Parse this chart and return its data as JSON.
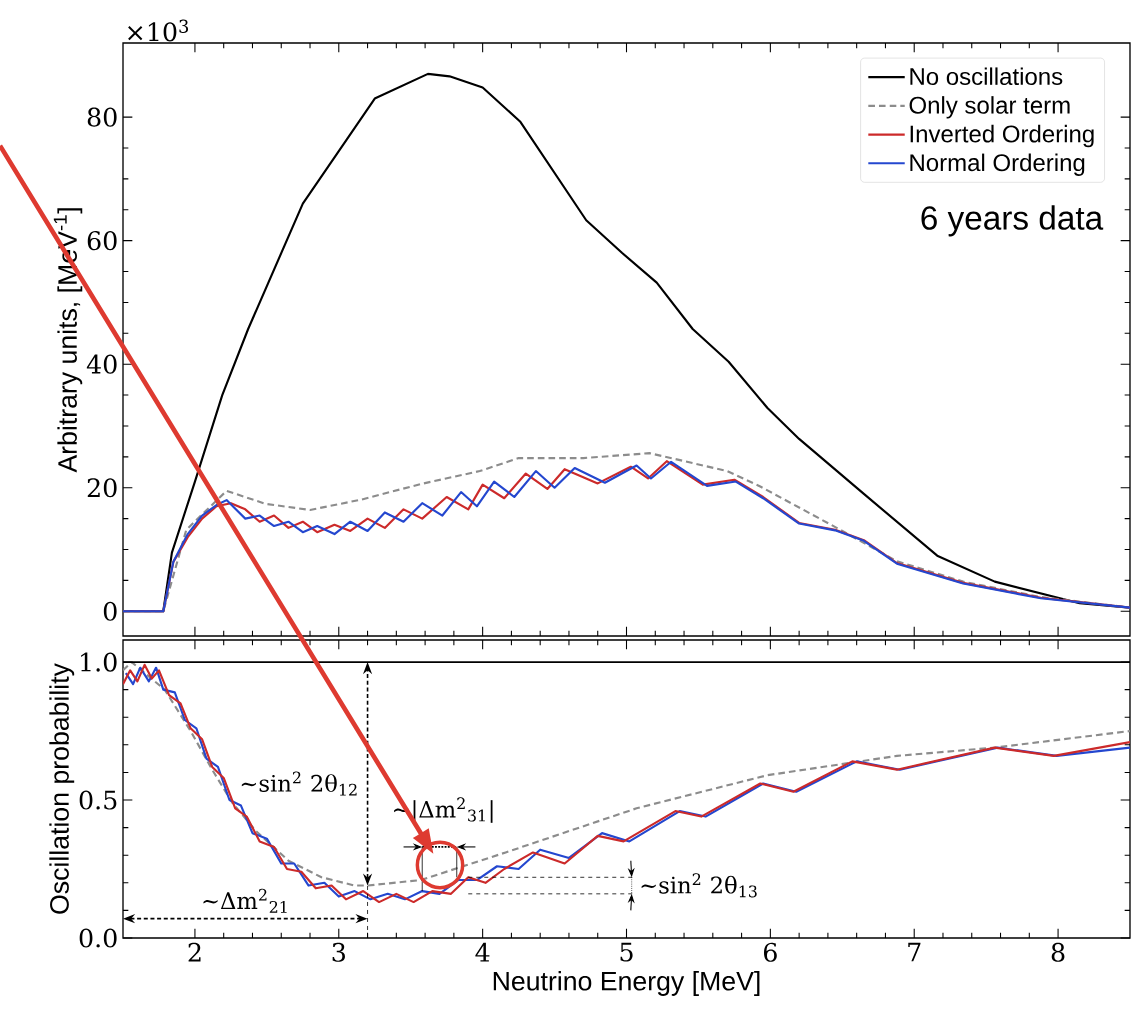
{
  "chart_data": [
    {
      "type": "line",
      "ylabel": "Arbitrary units, [MeV$^{-1}$]",
      "xlim": [
        1.5,
        8.5
      ],
      "xticks": [
        2,
        3,
        4,
        5,
        6,
        7,
        8
      ],
      "ylim": [
        -4,
        92
      ],
      "yticks": [
        0,
        20,
        40,
        60,
        80
      ],
      "tick_labels": "y",
      "legend": "top right",
      "annotations": [
        "×10$^{3}$",
        "6 years data"
      ],
      "series": [
        {
          "name": "No oscillations",
          "color": "#000000",
          "line_style": "solid",
          "x": [
            1.5,
            1.78,
            1.84,
            2.0,
            2.19,
            2.37,
            2.75,
            3.25,
            3.62,
            3.77,
            4.0,
            4.26,
            4.72,
            4.97,
            5.21,
            5.46,
            5.71,
            5.98,
            6.2,
            6.65,
            7.16,
            7.56,
            8.15,
            8.5
          ],
          "values": [
            0,
            0,
            9.5,
            21,
            35,
            45.7,
            66,
            83,
            87,
            86.6,
            84.8,
            79.3,
            63.3,
            58,
            53.2,
            45.7,
            40.4,
            32.9,
            27.9,
            19,
            9,
            4.8,
            1.3,
            0.6
          ]
        },
        {
          "name": "Only solar term",
          "color": "#8c8c8c",
          "line_style": "dashed",
          "x": [
            1.5,
            1.78,
            1.94,
            2.22,
            2.49,
            2.8,
            3.16,
            3.57,
            3.98,
            4.25,
            4.7,
            5.16,
            5.7,
            5.93,
            6.43,
            6.88,
            7.34,
            7.88,
            8.5
          ],
          "values": [
            0,
            0,
            13.2,
            19.5,
            17.4,
            16.4,
            18.1,
            20.6,
            22.7,
            24.8,
            24.8,
            25.6,
            22.7,
            20.2,
            13.9,
            8.1,
            4.8,
            2.3,
            0.6
          ]
        },
        {
          "name": "Inverted Ordering",
          "color": "#cc2a2a",
          "line_style": "solid",
          "x": [
            1.5,
            1.78,
            1.85,
            1.95,
            2.05,
            2.15,
            2.25,
            2.35,
            2.45,
            2.55,
            2.65,
            2.75,
            2.85,
            2.97,
            3.08,
            3.2,
            3.32,
            3.45,
            3.58,
            3.75,
            3.9,
            4.0,
            4.15,
            4.3,
            4.45,
            4.57,
            4.8,
            5.03,
            5.15,
            5.28,
            5.53,
            5.75,
            5.95,
            6.2,
            6.45,
            6.65,
            6.88,
            7.34,
            7.88,
            8.5
          ],
          "values": [
            0,
            0,
            8,
            12,
            15,
            17,
            17.5,
            16.5,
            14.5,
            15.5,
            13.5,
            14.5,
            12.8,
            14,
            13,
            15,
            13.5,
            16.5,
            15,
            18.5,
            16.5,
            20.5,
            18.3,
            22.3,
            19.8,
            23,
            20.7,
            23.4,
            21.5,
            24.3,
            20.5,
            21.3,
            18.5,
            14.3,
            13.2,
            11.5,
            7.8,
            4.6,
            2.2,
            0.6
          ]
        },
        {
          "name": "Normal Ordering",
          "color": "#2447cf",
          "line_style": "solid",
          "x": [
            1.5,
            1.78,
            1.85,
            1.95,
            2.05,
            2.15,
            2.22,
            2.35,
            2.45,
            2.55,
            2.65,
            2.75,
            2.85,
            2.97,
            3.08,
            3.2,
            3.32,
            3.45,
            3.58,
            3.72,
            3.85,
            3.96,
            4.08,
            4.22,
            4.37,
            4.5,
            4.64,
            4.85,
            5.07,
            5.17,
            5.31,
            5.56,
            5.76,
            5.95,
            6.2,
            6.45,
            6.65,
            6.88,
            7.34,
            7.88,
            8.5
          ],
          "values": [
            0,
            0,
            8,
            12.5,
            15.5,
            17.2,
            18,
            15,
            15.5,
            13.8,
            14.5,
            12.8,
            13.8,
            12.5,
            14.5,
            13,
            16,
            14.5,
            17.5,
            15.5,
            19.3,
            17,
            21,
            18.5,
            22.7,
            20,
            23.2,
            20.8,
            23.6,
            21.5,
            24.2,
            20.3,
            21,
            18.3,
            14.2,
            13.1,
            11.4,
            7.7,
            4.5,
            2.1,
            0.6
          ]
        }
      ]
    },
    {
      "type": "line",
      "xlabel": "Neutrino Energy [MeV]",
      "ylabel": "Oscillation probability",
      "xlim": [
        1.5,
        8.5
      ],
      "xticks": [
        2,
        3,
        4,
        5,
        6,
        7,
        8
      ],
      "ylim": [
        0,
        1.08
      ],
      "yticks": [
        {
          "value": 0,
          "label": "0.0"
        },
        {
          "value": 0.5,
          "label": "0.5"
        },
        {
          "value": 1.0,
          "label": "1.0"
        }
      ],
      "ref_lines": [
        {
          "axis": "y",
          "value": 1.0,
          "color": "#000000",
          "line_style": "solid"
        }
      ],
      "annotations": [
        "∼sin$^{2}$ 2θ$_{12}$",
        {
          "text": "∼|Δm$^{2}$$_{31}$|",
          "x": 3.58,
          "y": 0.17
        },
        "∼Δm$^{2}$$_{21}$",
        {
          "text": "∼sin$^{2}$ 2θ$_{13}$",
          "x": 3.9,
          "y": 0.22
        }
      ],
      "series": [
        {
          "color": "#8c8c8c",
          "line_style": "dashed",
          "x": [
            1.5,
            1.56,
            1.79,
            1.97,
            2.12,
            2.26,
            2.42,
            2.65,
            2.88,
            3.11,
            3.2,
            3.57,
            4.16,
            5.07,
            5.98,
            6.88,
            7.56,
            8.5
          ],
          "values": [
            0.97,
            1.0,
            0.9,
            0.75,
            0.61,
            0.49,
            0.39,
            0.28,
            0.22,
            0.19,
            0.19,
            0.21,
            0.31,
            0.47,
            0.59,
            0.66,
            0.69,
            0.75
          ]
        },
        {
          "color": "#2447cf",
          "line_style": "solid",
          "x": [
            1.52,
            1.57,
            1.62,
            1.68,
            1.73,
            1.78,
            1.86,
            1.93,
            2.01,
            2.08,
            2.16,
            2.24,
            2.32,
            2.4,
            2.5,
            2.6,
            2.69,
            2.79,
            2.9,
            3.0,
            3.11,
            3.22,
            3.34,
            3.46,
            3.58,
            3.7,
            3.83,
            3.96,
            4.1,
            4.25,
            4.4,
            4.6,
            4.83,
            5.02,
            5.37,
            5.55,
            5.95,
            6.18,
            6.6,
            6.9,
            7.58,
            7.99,
            8.5
          ],
          "values": [
            0.96,
            0.92,
            0.98,
            0.93,
            0.98,
            0.9,
            0.89,
            0.79,
            0.76,
            0.65,
            0.62,
            0.5,
            0.48,
            0.38,
            0.36,
            0.27,
            0.27,
            0.19,
            0.2,
            0.15,
            0.17,
            0.14,
            0.16,
            0.14,
            0.17,
            0.16,
            0.21,
            0.21,
            0.26,
            0.25,
            0.32,
            0.29,
            0.38,
            0.35,
            0.46,
            0.44,
            0.56,
            0.53,
            0.64,
            0.61,
            0.69,
            0.66,
            0.69
          ]
        },
        {
          "color": "#cc2a2a",
          "line_style": "solid",
          "x": [
            1.5,
            1.55,
            1.6,
            1.65,
            1.7,
            1.75,
            1.82,
            1.9,
            1.97,
            2.05,
            2.12,
            2.2,
            2.28,
            2.36,
            2.45,
            2.55,
            2.64,
            2.74,
            2.84,
            2.95,
            3.05,
            3.17,
            3.28,
            3.4,
            3.52,
            3.65,
            3.78,
            3.9,
            4.02,
            4.15,
            4.35,
            4.57,
            4.8,
            4.98,
            5.34,
            5.52,
            5.93,
            6.16,
            6.57,
            6.88,
            7.56,
            7.97,
            8.5
          ],
          "values": [
            0.92,
            0.97,
            0.93,
            0.99,
            0.94,
            0.97,
            0.88,
            0.85,
            0.76,
            0.72,
            0.62,
            0.58,
            0.47,
            0.44,
            0.35,
            0.33,
            0.25,
            0.24,
            0.18,
            0.19,
            0.14,
            0.17,
            0.13,
            0.16,
            0.13,
            0.17,
            0.16,
            0.22,
            0.2,
            0.25,
            0.31,
            0.27,
            0.37,
            0.35,
            0.46,
            0.44,
            0.56,
            0.53,
            0.64,
            0.61,
            0.69,
            0.66,
            0.71
          ]
        }
      ]
    }
  ]
}
